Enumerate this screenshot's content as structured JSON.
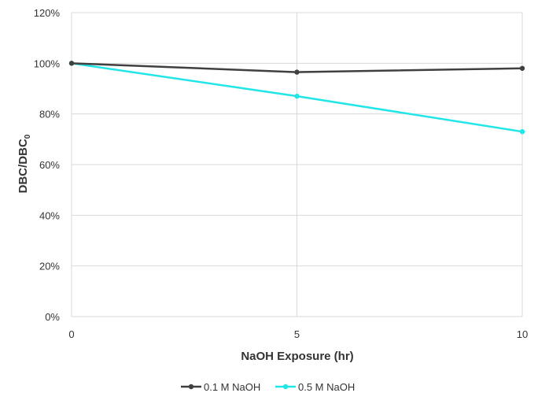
{
  "chart_data": {
    "type": "line",
    "title": "",
    "xlabel": "NaOH Exposure (hr)",
    "ylabel": "DBC/DBC",
    "ylabel_subscript": "0",
    "x": [
      0,
      5,
      10
    ],
    "x_ticks": [
      "0",
      "5",
      "10"
    ],
    "xlim": [
      0,
      10
    ],
    "ylim": [
      0,
      120
    ],
    "y_ticks": [
      "0%",
      "20%",
      "40%",
      "60%",
      "80%",
      "100%",
      "120%"
    ],
    "y_tick_values": [
      0,
      20,
      40,
      60,
      80,
      100,
      120
    ],
    "grid": true,
    "legend_position": "bottom-center",
    "series": [
      {
        "name": "0.1 M NaOH",
        "values": [
          100,
          96.5,
          98
        ],
        "color": "#404040"
      },
      {
        "name": "0.5 M NaOH",
        "values": [
          100,
          87,
          73
        ],
        "color": "#22e5e8"
      }
    ]
  }
}
